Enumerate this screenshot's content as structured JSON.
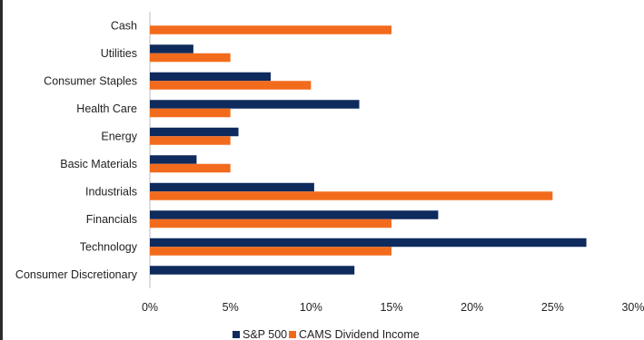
{
  "chart_data": {
    "type": "bar",
    "orientation": "horizontal",
    "categories": [
      "Cash",
      "Utilities",
      "Consumer Staples",
      "Health Care",
      "Energy",
      "Basic Materials",
      "Industrials",
      "Financials",
      "Technology",
      "Consumer Discretionary"
    ],
    "series": [
      {
        "name": "S&P 500",
        "color": "#0f2a5c",
        "values": [
          0,
          2.7,
          7.5,
          13.0,
          5.5,
          2.9,
          10.2,
          17.9,
          27.1,
          12.7
        ]
      },
      {
        "name": "CAMS Dividend Income",
        "color": "#f26b1d",
        "values": [
          15.0,
          5.0,
          10.0,
          5.0,
          5.0,
          5.0,
          25.0,
          15.0,
          15.0,
          0
        ]
      }
    ],
    "xlim": [
      0,
      30
    ],
    "x_ticks": [
      0,
      5,
      10,
      15,
      20,
      25,
      30
    ],
    "x_tick_labels": [
      "0%",
      "5%",
      "10%",
      "15%",
      "20%",
      "25%",
      "30%"
    ],
    "grid": false,
    "legend_position": "bottom"
  }
}
